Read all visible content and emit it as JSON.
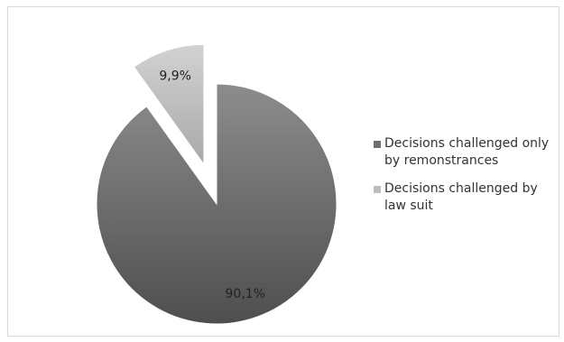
{
  "chart_data": {
    "type": "pie",
    "slices": [
      {
        "label": "Decisions challenged only by remonstrances",
        "value": 90.1,
        "display": "90,1%",
        "color": "#6e6e6e"
      },
      {
        "label": "Decisions challenged by law suit",
        "value": 9.9,
        "display": "9,9%",
        "color": "#bdbdbd",
        "exploded": true
      }
    ],
    "legend_position": "right"
  },
  "legend": {
    "items": [
      {
        "label": "Decisions challenged only by remonstrances",
        "color": "#6e6e6e"
      },
      {
        "label": "Decisions challenged by law suit",
        "color": "#bdbdbd"
      }
    ]
  }
}
